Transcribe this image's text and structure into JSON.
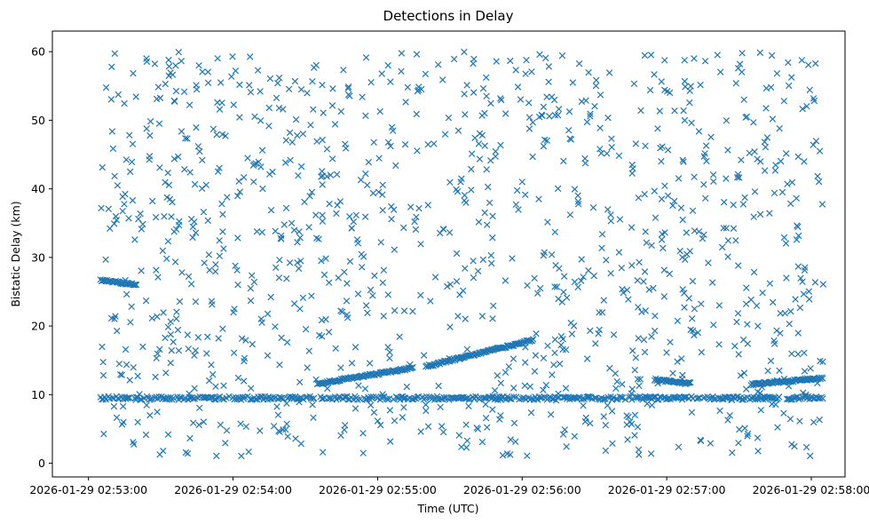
{
  "chart_data": {
    "type": "scatter",
    "title": "Detections in Delay",
    "xlabel": "Time (UTC)",
    "ylabel": "Bistatic Delay (km)",
    "marker": "x",
    "color": "#1f77b4",
    "x_unit": "UTC time",
    "x_start": "2026-01-29 02:53:05",
    "x_end": "2026-01-29 02:58:05",
    "xlim": [
      "2026-01-29 02:52:45",
      "2026-01-29 02:58:14"
    ],
    "xticks": [
      "2026-01-29 02:53:00",
      "2026-01-29 02:54:00",
      "2026-01-29 02:55:00",
      "2026-01-29 02:56:00",
      "2026-01-29 02:57:00",
      "2026-01-29 02:58:00"
    ],
    "ylim": [
      -2,
      63
    ],
    "yticks": [
      0,
      10,
      20,
      30,
      40,
      50,
      60
    ],
    "grid": false,
    "tracks": [
      {
        "x0": "2026-01-29 02:53:05",
        "y0": 26.7,
        "x1": "2026-01-29 02:53:20",
        "y1": 26.0
      },
      {
        "x0": "2026-01-29 02:54:35",
        "y0": 11.6,
        "x1": "2026-01-29 02:55:15",
        "y1": 13.9
      },
      {
        "x0": "2026-01-29 02:55:20",
        "y0": 14.1,
        "x1": "2026-01-29 02:56:05",
        "y1": 18.0
      },
      {
        "x0": "2026-01-29 02:56:55",
        "y0": 12.2,
        "x1": "2026-01-29 02:57:10",
        "y1": 11.6
      },
      {
        "x0": "2026-01-29 02:57:35",
        "y0": 11.5,
        "x1": "2026-01-29 02:58:05",
        "y1": 12.4
      }
    ],
    "clutter_band": {
      "y": 9.5,
      "x_start": "2026-01-29 02:53:05",
      "x_end": "2026-01-29 02:58:05"
    },
    "random_detections": {
      "count": 1150,
      "y_range": [
        1,
        60
      ]
    }
  }
}
